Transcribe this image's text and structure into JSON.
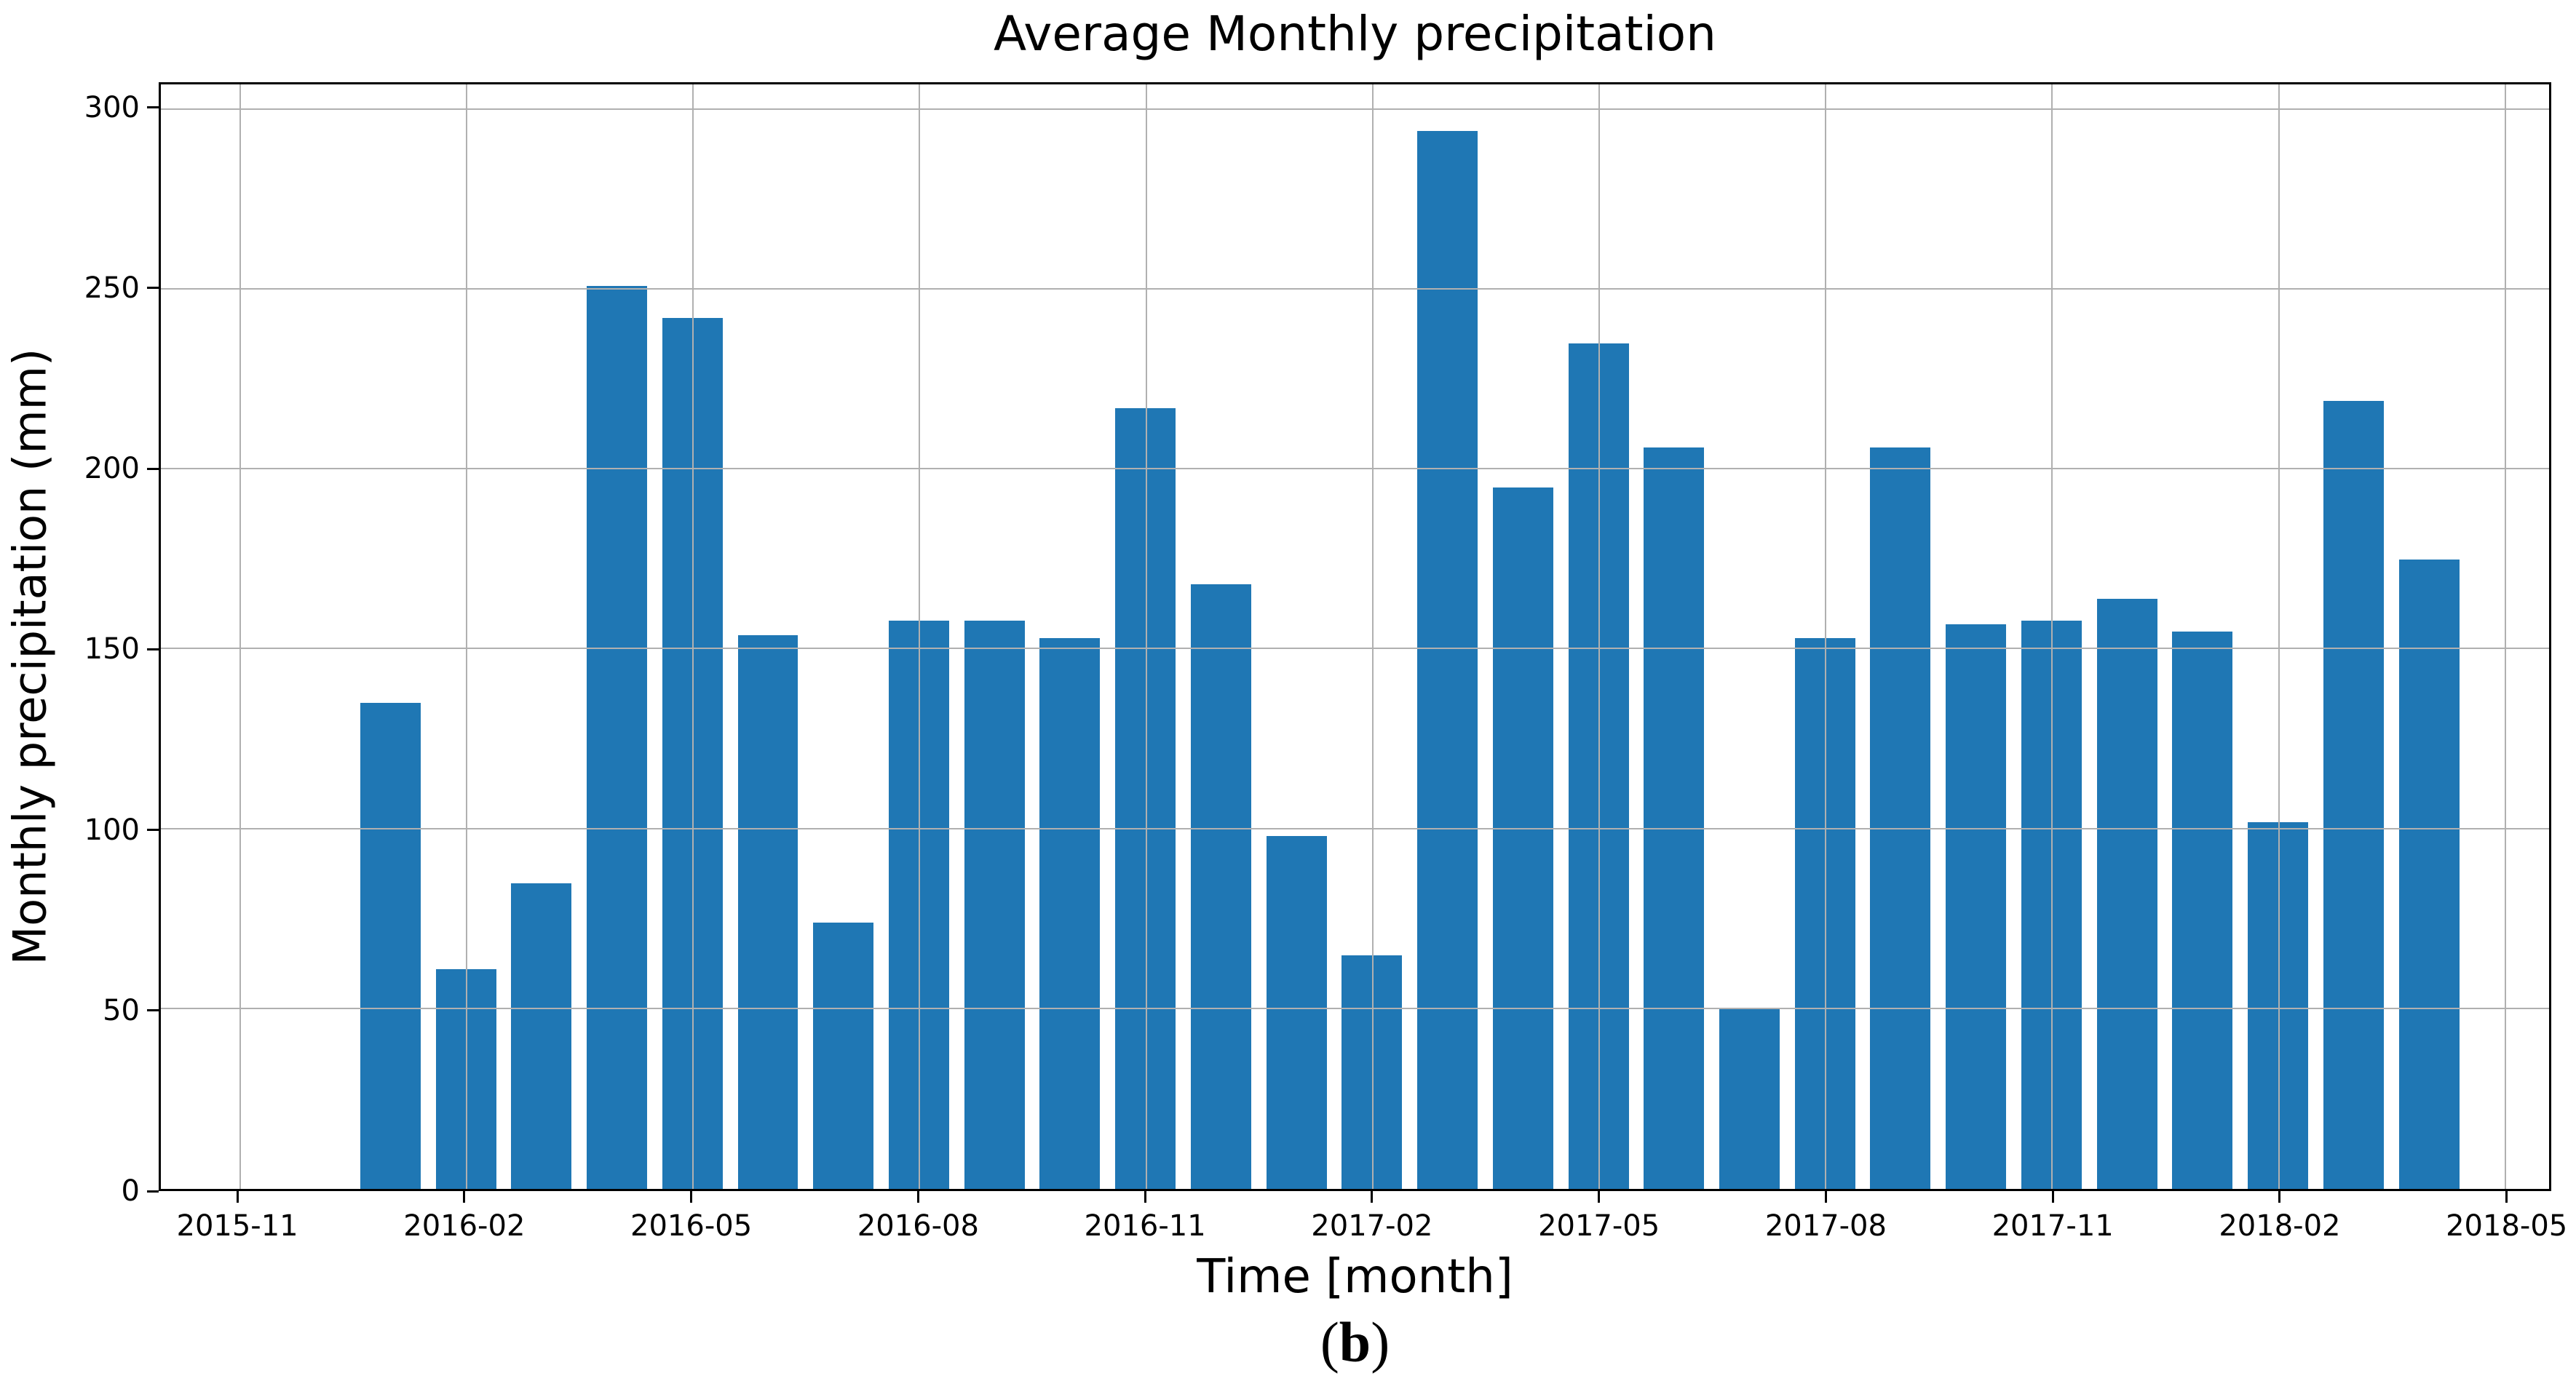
{
  "chart_data": {
    "type": "bar",
    "title": "Average Monthly precipitation",
    "xlabel": "Time [month]",
    "ylabel": "Monthly precipitation (mm)",
    "caption_open": "(",
    "caption_letter": "b",
    "caption_close": ")",
    "categories": [
      "2016-01",
      "2016-02",
      "2016-03",
      "2016-04",
      "2016-05",
      "2016-06",
      "2016-07",
      "2016-08",
      "2016-09",
      "2016-10",
      "2016-11",
      "2016-12",
      "2017-01",
      "2017-02",
      "2017-03",
      "2017-04",
      "2017-05",
      "2017-06",
      "2017-07",
      "2017-08",
      "2017-09",
      "2017-10",
      "2017-11",
      "2017-12",
      "2018-01",
      "2018-02",
      "2018-03",
      "2018-04"
    ],
    "values": [
      135,
      61,
      85,
      251,
      242,
      154,
      74,
      158,
      158,
      153,
      217,
      168,
      98,
      65,
      294,
      195,
      235,
      206,
      50,
      153,
      206,
      157,
      158,
      164,
      155,
      102,
      219,
      175
    ],
    "x_tick_labels": [
      "2015-11",
      "2016-02",
      "2016-05",
      "2016-08",
      "2016-11",
      "2017-02",
      "2017-05",
      "2017-08",
      "2017-11",
      "2018-02",
      "2018-05"
    ],
    "y_ticks": [
      0,
      50,
      100,
      150,
      200,
      250,
      300
    ],
    "ylim": [
      0,
      307
    ],
    "xlim_months_from_first_tick": [
      -1.04,
      30.59
    ],
    "bar_width_months": 0.8,
    "grid": "on",
    "grid_over_bars": true,
    "legend_position": "none",
    "bar_color": "#1f77b4",
    "grid_color": "#b0b0b0",
    "axis_color": "#000000"
  }
}
